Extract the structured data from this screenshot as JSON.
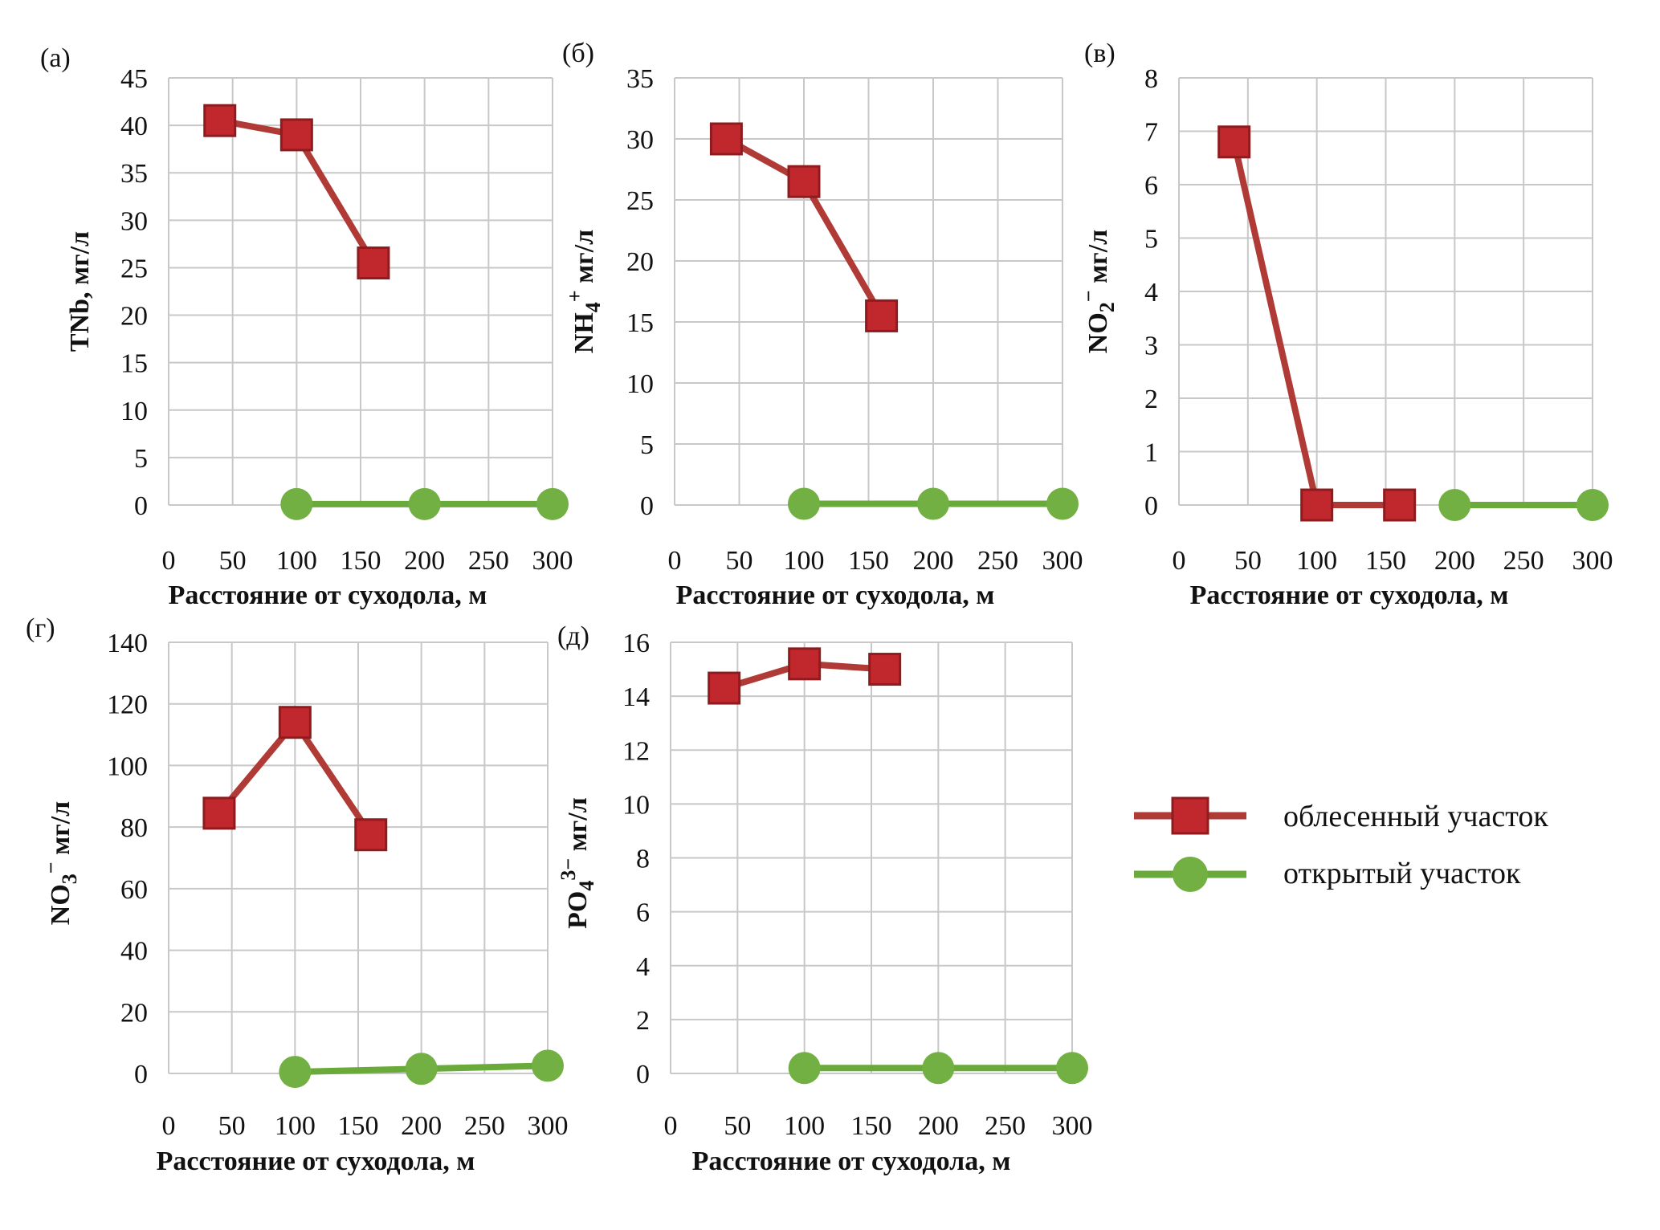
{
  "colors": {
    "forest": "#c0282d",
    "forest_line": "#b03a35",
    "forest_edge": "#8e1c1f",
    "open": "#72b043",
    "open_line": "#6aaa3a",
    "grid": "#c8c8c8"
  },
  "legend": {
    "items": [
      {
        "label": "облесенный участок",
        "marker": "square",
        "color": "#c0282d"
      },
      {
        "label": "открытый участок",
        "marker": "circle",
        "color": "#72b043"
      }
    ]
  },
  "chart_data": [
    {
      "type": "line",
      "panel": "(а)",
      "ylabel_parts": [
        {
          "t": "TNb, мг/л",
          "s": "n"
        }
      ],
      "xlabel": "Расстояние от суходола, м",
      "xlim": [
        0,
        300
      ],
      "xticks": [
        0,
        50,
        100,
        150,
        200,
        250,
        300
      ],
      "ylim": [
        0,
        45
      ],
      "yticks": [
        0,
        5,
        10,
        15,
        20,
        25,
        30,
        35,
        40,
        45
      ],
      "grid": true,
      "series": [
        {
          "name": "облесенный участок",
          "marker": "square",
          "x": [
            40,
            100,
            160
          ],
          "y": [
            40.5,
            39,
            25.5
          ]
        },
        {
          "name": "открытый участок",
          "marker": "circle",
          "x": [
            100,
            200,
            300
          ],
          "y": [
            0.1,
            0.1,
            0.1
          ]
        }
      ]
    },
    {
      "type": "line",
      "panel": "(б)",
      "ylabel_parts": [
        {
          "t": "NH",
          "s": "n"
        },
        {
          "t": "4",
          "s": "sub"
        },
        {
          "t": "+",
          "s": "sup"
        },
        {
          "t": " мг/л",
          "s": "n"
        }
      ],
      "xlabel": "Расстояние от суходола, м",
      "xlim": [
        0,
        300
      ],
      "xticks": [
        0,
        50,
        100,
        150,
        200,
        250,
        300
      ],
      "ylim": [
        0,
        35
      ],
      "yticks": [
        0,
        5,
        10,
        15,
        20,
        25,
        30,
        35
      ],
      "grid": true,
      "series": [
        {
          "name": "облесенный участок",
          "marker": "square",
          "x": [
            40,
            100,
            160
          ],
          "y": [
            30,
            26.5,
            15.5
          ]
        },
        {
          "name": "открытый участок",
          "marker": "circle",
          "x": [
            100,
            200,
            300
          ],
          "y": [
            0.1,
            0.1,
            0.1
          ]
        }
      ]
    },
    {
      "type": "line",
      "panel": "(в)",
      "ylabel_parts": [
        {
          "t": "NO",
          "s": "n"
        },
        {
          "t": "2",
          "s": "sub"
        },
        {
          "t": "−",
          "s": "sup"
        },
        {
          "t": " мг/л",
          "s": "n"
        }
      ],
      "xlabel": "Расстояние от суходола, м",
      "xlim": [
        0,
        300
      ],
      "xticks": [
        0,
        50,
        100,
        150,
        200,
        250,
        300
      ],
      "ylim": [
        0,
        8
      ],
      "yticks": [
        0,
        1,
        2,
        3,
        4,
        5,
        6,
        7,
        8
      ],
      "grid": true,
      "series": [
        {
          "name": "облесенный участок",
          "marker": "square",
          "x": [
            40,
            100,
            160
          ],
          "y": [
            6.8,
            0,
            0
          ]
        },
        {
          "name": "открытый участок",
          "marker": "circle",
          "x": [
            200,
            300
          ],
          "y": [
            0,
            0
          ]
        }
      ]
    },
    {
      "type": "line",
      "panel": "(г)",
      "ylabel_parts": [
        {
          "t": "NO",
          "s": "n"
        },
        {
          "t": "3",
          "s": "sub"
        },
        {
          "t": "−",
          "s": "sup"
        },
        {
          "t": " мг/л",
          "s": "n"
        }
      ],
      "xlabel": "Расстояние от суходола, м",
      "xlim": [
        0,
        300
      ],
      "xticks": [
        0,
        50,
        100,
        150,
        200,
        250,
        300
      ],
      "ylim": [
        0,
        140
      ],
      "yticks": [
        0,
        20,
        40,
        60,
        80,
        100,
        120,
        140
      ],
      "grid": true,
      "series": [
        {
          "name": "облесенный участок",
          "marker": "square",
          "x": [
            40,
            100,
            160
          ],
          "y": [
            84.5,
            114,
            77.5
          ]
        },
        {
          "name": "открытый участок",
          "marker": "circle",
          "x": [
            100,
            200,
            300
          ],
          "y": [
            0.5,
            1.5,
            2.5
          ]
        }
      ]
    },
    {
      "type": "line",
      "panel": "(д)",
      "ylabel_parts": [
        {
          "t": "PO",
          "s": "n"
        },
        {
          "t": "4",
          "s": "sub"
        },
        {
          "t": "3−",
          "s": "sup"
        },
        {
          "t": " мг/л",
          "s": "n"
        }
      ],
      "xlabel": "Расстояние от суходола, м",
      "xlim": [
        0,
        300
      ],
      "xticks": [
        0,
        50,
        100,
        150,
        200,
        250,
        300
      ],
      "ylim": [
        0,
        16
      ],
      "yticks": [
        0,
        2,
        4,
        6,
        8,
        10,
        12,
        14,
        16
      ],
      "grid": true,
      "series": [
        {
          "name": "облесенный участок",
          "marker": "square",
          "x": [
            40,
            100,
            160
          ],
          "y": [
            14.3,
            15.2,
            15
          ]
        },
        {
          "name": "открытый участок",
          "marker": "circle",
          "x": [
            100,
            200,
            300
          ],
          "y": [
            0.2,
            0.2,
            0.2
          ]
        }
      ]
    }
  ]
}
